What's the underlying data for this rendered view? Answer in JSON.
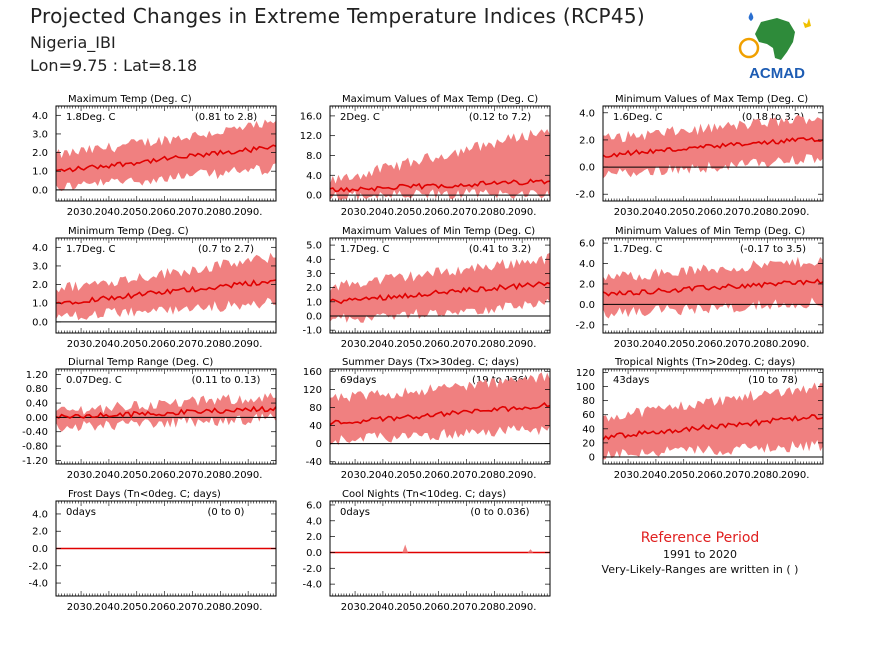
{
  "header": {
    "title": "Projected Changes in Extreme Temperature Indices (RCP45)",
    "location": "Nigeria_IBI",
    "coords": "Lon=9.75 : Lat=8.18"
  },
  "logo": {
    "text": "ACMAD",
    "icon": "africa-map-logo"
  },
  "reference": {
    "title": "Reference Period",
    "years": "1991 to 2020",
    "note": "Very-Likely-Ranges are written in ( )"
  },
  "colors": {
    "band": "#f08080",
    "line": "#e00000",
    "axis": "#000000",
    "title_red": "#e02020"
  },
  "chart_data": [
    {
      "type": "area",
      "title": "Maximum Temp (Deg. C)",
      "mean_label": "1.8Deg. C",
      "range_label": "(0.81 to 2.8)",
      "x_start": 2021,
      "x_end": 2100,
      "xticks": [
        2030,
        2040,
        2050,
        2060,
        2070,
        2080,
        2090
      ],
      "xtick_labels": [
        "2030.",
        "2040.",
        "2050.",
        "2060.",
        "2070.",
        "2080.",
        "2090."
      ],
      "ylim": [
        -0.6,
        4.5
      ],
      "yticks": [
        0,
        1,
        2,
        3,
        4
      ],
      "ytick_labels": [
        "0.0",
        "1.0",
        "2.0",
        "3.0",
        "4.0"
      ],
      "mean_start": 1.0,
      "mean_end": 2.3,
      "band_low_start": 0.2,
      "band_low_end": 1.2,
      "band_high_start": 1.8,
      "band_high_end": 3.5
    },
    {
      "type": "area",
      "title": "Maximum Values of Max Temp (Deg. C)",
      "mean_label": "2Deg. C",
      "range_label": "(0.12 to 7.2)",
      "x_start": 2021,
      "x_end": 2100,
      "xticks": [
        2030,
        2040,
        2050,
        2060,
        2070,
        2080,
        2090
      ],
      "xtick_labels": [
        "2030.",
        "2040.",
        "2050.",
        "2060.",
        "2070.",
        "2080.",
        "2090."
      ],
      "ylim": [
        -1.2,
        18
      ],
      "yticks": [
        0,
        4,
        8,
        12,
        16
      ],
      "ytick_labels": [
        "0.0",
        "4.0",
        "8.0",
        "12.0",
        "16.0"
      ],
      "mean_start": 1.0,
      "mean_end": 2.8,
      "band_low_start": 0.0,
      "band_low_end": 0.6,
      "band_high_start": 2.5,
      "band_high_end": 13.0
    },
    {
      "type": "area",
      "title": "Minimum Values of Max Temp (Deg. C)",
      "mean_label": "1.6Deg. C",
      "range_label": "(0.18 to 3.2)",
      "x_start": 2021,
      "x_end": 2100,
      "xticks": [
        2030,
        2040,
        2050,
        2060,
        2070,
        2080,
        2090
      ],
      "xtick_labels": [
        "2030.",
        "2040.",
        "2050.",
        "2060.",
        "2070.",
        "2080.",
        "2090."
      ],
      "ylim": [
        -2.5,
        4.5
      ],
      "yticks": [
        -2,
        0,
        2,
        4
      ],
      "ytick_labels": [
        "-2.0",
        "0.0",
        "2.0",
        "4.0"
      ],
      "mean_start": 0.9,
      "mean_end": 2.1,
      "band_low_start": -0.5,
      "band_low_end": 0.7,
      "band_high_start": 2.0,
      "band_high_end": 3.6
    },
    {
      "type": "area",
      "title": "Minimum Temp (Deg. C)",
      "mean_label": "1.7Deg. C",
      "range_label": "(0.7 to 2.7)",
      "x_start": 2021,
      "x_end": 2100,
      "xticks": [
        2030,
        2040,
        2050,
        2060,
        2070,
        2080,
        2090
      ],
      "xtick_labels": [
        "2030.",
        "2040.",
        "2050.",
        "2060.",
        "2070.",
        "2080.",
        "2090."
      ],
      "ylim": [
        -0.6,
        4.5
      ],
      "yticks": [
        0,
        1,
        2,
        3,
        4
      ],
      "ytick_labels": [
        "0.0",
        "1.0",
        "2.0",
        "3.0",
        "4.0"
      ],
      "mean_start": 1.0,
      "mean_end": 2.2,
      "band_low_start": 0.3,
      "band_low_end": 1.1,
      "band_high_start": 1.7,
      "band_high_end": 3.4
    },
    {
      "type": "area",
      "title": "Maximum Values of Min Temp (Deg. C)",
      "mean_label": "1.7Deg. C",
      "range_label": "(0.41 to 3.2)",
      "x_start": 2021,
      "x_end": 2100,
      "xticks": [
        2030,
        2040,
        2050,
        2060,
        2070,
        2080,
        2090
      ],
      "xtick_labels": [
        "2030.",
        "2040.",
        "2050.",
        "2060.",
        "2070.",
        "2080.",
        "2090."
      ],
      "ylim": [
        -1.2,
        5.5
      ],
      "yticks": [
        -1,
        0,
        1,
        2,
        3,
        4,
        5
      ],
      "ytick_labels": [
        "-1.0",
        "0.0",
        "1.0",
        "2.0",
        "3.0",
        "4.0",
        "5.0"
      ],
      "mean_start": 1.0,
      "mean_end": 2.3,
      "band_low_start": -0.2,
      "band_low_end": 0.9,
      "band_high_start": 2.0,
      "band_high_end": 4.0
    },
    {
      "type": "area",
      "title": "Minimum Values of Min Temp (Deg. C)",
      "mean_label": "1.7Deg. C",
      "range_label": "(-0.17 to 3.5)",
      "x_start": 2021,
      "x_end": 2100,
      "xticks": [
        2030,
        2040,
        2050,
        2060,
        2070,
        2080,
        2090
      ],
      "xtick_labels": [
        "2030.",
        "2040.",
        "2050.",
        "2060.",
        "2070.",
        "2080.",
        "2090."
      ],
      "ylim": [
        -2.8,
        6.5
      ],
      "yticks": [
        -2,
        0,
        2,
        4,
        6
      ],
      "ytick_labels": [
        "-2.0",
        "0.0",
        "2.0",
        "4.0",
        "6.0"
      ],
      "mean_start": 1.0,
      "mean_end": 2.3,
      "band_low_start": -0.8,
      "band_low_end": 0.3,
      "band_high_start": 2.5,
      "band_high_end": 4.2
    },
    {
      "type": "area",
      "title": "Diurnal Temp Range (Deg. C)",
      "mean_label": "0.07Deg. C",
      "range_label": "(0.11 to 0.13)",
      "x_start": 2021,
      "x_end": 2100,
      "xticks": [
        2030,
        2040,
        2050,
        2060,
        2070,
        2080,
        2090
      ],
      "xtick_labels": [
        "2030.",
        "2040.",
        "2050.",
        "2060.",
        "2070.",
        "2080.",
        "2090."
      ],
      "ylim": [
        -1.3,
        1.35
      ],
      "yticks": [
        -1.2,
        -0.8,
        -0.4,
        0,
        0.4,
        0.8,
        1.2
      ],
      "ytick_labels": [
        "-1.20",
        "-0.80",
        "-0.40",
        "0.00",
        "0.40",
        "0.80",
        "1.20"
      ],
      "mean_start": 0.0,
      "mean_end": 0.25,
      "band_low_start": -0.25,
      "band_low_end": 0.0,
      "band_high_start": 0.15,
      "band_high_end": 0.55
    },
    {
      "type": "area",
      "title": "Summer Days (Tx>30deg. C; days)",
      "mean_label": "69days",
      "range_label": "(19 to 136)",
      "x_start": 2021,
      "x_end": 2100,
      "xticks": [
        2030,
        2040,
        2050,
        2060,
        2070,
        2080,
        2090
      ],
      "xtick_labels": [
        "2030.",
        "2040.",
        "2050.",
        "2060.",
        "2070.",
        "2080.",
        "2090."
      ],
      "ylim": [
        -45,
        165
      ],
      "yticks": [
        -40,
        0,
        40,
        80,
        120,
        160
      ],
      "ytick_labels": [
        "-40",
        "0",
        "40",
        "80",
        "120",
        "160"
      ],
      "mean_start": 45,
      "mean_end": 85,
      "band_low_start": 10,
      "band_low_end": 35,
      "band_high_start": 95,
      "band_high_end": 145
    },
    {
      "type": "area",
      "title": "Tropical Nights (Tn>20deg. C; days)",
      "mean_label": "43days",
      "range_label": "(10 to 78)",
      "x_start": 2021,
      "x_end": 2100,
      "xticks": [
        2030,
        2040,
        2050,
        2060,
        2070,
        2080,
        2090
      ],
      "xtick_labels": [
        "2030.",
        "2040.",
        "2050.",
        "2060.",
        "2070.",
        "2080.",
        "2090."
      ],
      "ylim": [
        -10,
        125
      ],
      "yticks": [
        0,
        20,
        40,
        60,
        80,
        100,
        120
      ],
      "ytick_labels": [
        "0",
        "20",
        "40",
        "60",
        "80",
        "100",
        "120"
      ],
      "mean_start": 28,
      "mean_end": 58,
      "band_low_start": 5,
      "band_low_end": 18,
      "band_high_start": 55,
      "band_high_end": 100
    },
    {
      "type": "area",
      "title": "Frost Days (Tn<0deg. C; days)",
      "mean_label": "0days",
      "range_label": "(0 to 0)",
      "x_start": 2021,
      "x_end": 2100,
      "xticks": [
        2030,
        2040,
        2050,
        2060,
        2070,
        2080,
        2090
      ],
      "xtick_labels": [
        "2030.",
        "2040.",
        "2050.",
        "2060.",
        "2070.",
        "2080.",
        "2090."
      ],
      "ylim": [
        -5.5,
        5.5
      ],
      "yticks": [
        -4,
        -2,
        0,
        2,
        4
      ],
      "ytick_labels": [
        "-4.0",
        "-2.0",
        "0.0",
        "2.0",
        "4.0"
      ],
      "mean_start": 0,
      "mean_end": 0,
      "band_low_start": 0,
      "band_low_end": 0,
      "band_high_start": 0,
      "band_high_end": 0
    },
    {
      "type": "area",
      "title": "Cool Nights (Tn<10deg. C; days)",
      "mean_label": "0days",
      "range_label": "(0 to 0.036)",
      "x_start": 2021,
      "x_end": 2100,
      "xticks": [
        2030,
        2040,
        2050,
        2060,
        2070,
        2080,
        2090
      ],
      "xtick_labels": [
        "2030.",
        "2040.",
        "2050.",
        "2060.",
        "2070.",
        "2080.",
        "2090."
      ],
      "ylim": [
        -5.5,
        6.5
      ],
      "yticks": [
        -4,
        -2,
        0,
        2,
        4,
        6
      ],
      "ytick_labels": [
        "-4.0",
        "-2.0",
        "0.0",
        "2.0",
        "4.0",
        "6.0"
      ],
      "mean_start": 0,
      "mean_end": 0,
      "band_low_start": 0,
      "band_low_end": 0,
      "band_high_start": 0,
      "band_high_end": 0,
      "spikes": [
        {
          "x": 2048,
          "y": 1.0
        },
        {
          "x": 2093,
          "y": 0.4
        }
      ]
    }
  ]
}
